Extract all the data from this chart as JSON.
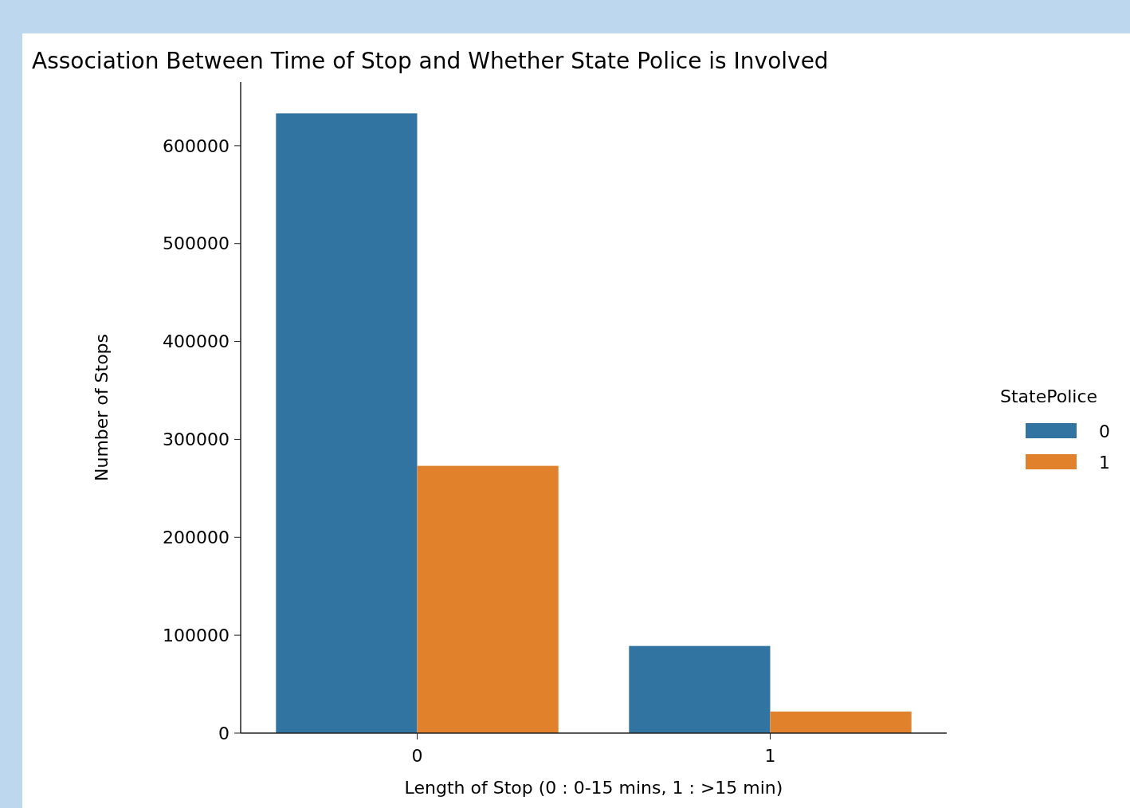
{
  "chart_data": {
    "type": "bar",
    "title": "Association Between Time of Stop and Whether State Police is Involved",
    "xlabel": "Length of Stop (0 : 0-15 mins, 1 : >15 min)",
    "ylabel": "Number of Stops",
    "legend_title": "StatePolice",
    "categories": [
      "0",
      "1"
    ],
    "series": [
      {
        "name": "0",
        "color": "#3274a1",
        "values": [
          633000,
          89000
        ]
      },
      {
        "name": "1",
        "color": "#e1812c",
        "values": [
          273000,
          22000
        ]
      }
    ],
    "ylim": [
      0,
      665000
    ],
    "yticks": [
      0,
      100000,
      200000,
      300000,
      400000,
      500000,
      600000
    ],
    "grid": false,
    "legend": "right"
  }
}
